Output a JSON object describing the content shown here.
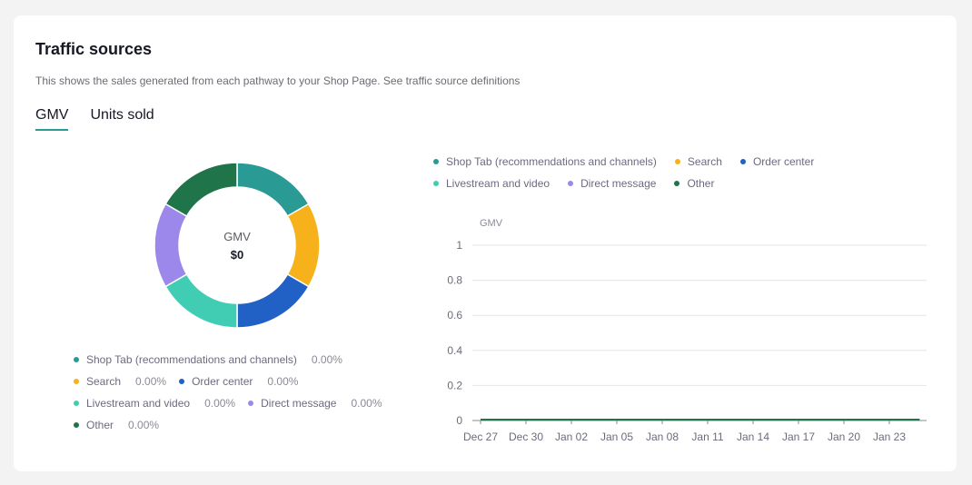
{
  "card": {
    "title": "Traffic sources",
    "description": "This shows the sales generated from each pathway to your Shop Page. See traffic source definitions",
    "tabs": [
      {
        "label": "GMV",
        "active": true
      },
      {
        "label": "Units sold",
        "active": false
      }
    ]
  },
  "donut": {
    "center_label": "GMV",
    "center_value": "$0"
  },
  "sources": [
    {
      "name": "Shop Tab (recommendations and channels)",
      "pct": "0.00%",
      "color": "#2a9a95"
    },
    {
      "name": "Search",
      "pct": "0.00%",
      "color": "#f7b21b"
    },
    {
      "name": "Order center",
      "pct": "0.00%",
      "color": "#2160c4"
    },
    {
      "name": "Livestream and video",
      "pct": "0.00%",
      "color": "#41cdb3"
    },
    {
      "name": "Direct message",
      "pct": "0.00%",
      "color": "#9c88ea"
    },
    {
      "name": "Other",
      "pct": "0.00%",
      "color": "#1f744a"
    }
  ],
  "chart_data": [
    {
      "type": "pie",
      "title": "GMV",
      "categories": [
        "Shop Tab (recommendations and channels)",
        "Search",
        "Order center",
        "Livestream and video",
        "Direct message",
        "Other"
      ],
      "values": [
        0,
        0,
        0,
        0,
        0,
        0
      ],
      "display_note": "all zero; rendered as equal placeholder segments",
      "center_text": "$0"
    },
    {
      "type": "line",
      "ylabel": "GMV",
      "ylim": [
        0,
        1
      ],
      "yticks": [
        "0",
        "0.2",
        "0.4",
        "0.6",
        "0.8",
        "1"
      ],
      "xticks": [
        "Dec 27",
        "Dec 30",
        "Jan 02",
        "Jan 05",
        "Jan 08",
        "Jan 11",
        "Jan 14",
        "Jan 17",
        "Jan 20",
        "Jan 23"
      ],
      "x_start": "Dec 27",
      "x_days": 30,
      "grid": true,
      "legend": "top",
      "series": [
        {
          "name": "Shop Tab (recommendations and channels)",
          "values": [
            0,
            0,
            0,
            0,
            0,
            0,
            0,
            0,
            0,
            0,
            0,
            0,
            0,
            0,
            0,
            0,
            0,
            0,
            0,
            0,
            0,
            0,
            0,
            0,
            0,
            0,
            0,
            0,
            0,
            0
          ]
        },
        {
          "name": "Search",
          "values": [
            0,
            0,
            0,
            0,
            0,
            0,
            0,
            0,
            0,
            0,
            0,
            0,
            0,
            0,
            0,
            0,
            0,
            0,
            0,
            0,
            0,
            0,
            0,
            0,
            0,
            0,
            0,
            0,
            0,
            0
          ]
        },
        {
          "name": "Order center",
          "values": [
            0,
            0,
            0,
            0,
            0,
            0,
            0,
            0,
            0,
            0,
            0,
            0,
            0,
            0,
            0,
            0,
            0,
            0,
            0,
            0,
            0,
            0,
            0,
            0,
            0,
            0,
            0,
            0,
            0,
            0
          ]
        },
        {
          "name": "Livestream and video",
          "values": [
            0,
            0,
            0,
            0,
            0,
            0,
            0,
            0,
            0,
            0,
            0,
            0,
            0,
            0,
            0,
            0,
            0,
            0,
            0,
            0,
            0,
            0,
            0,
            0,
            0,
            0,
            0,
            0,
            0,
            0
          ]
        },
        {
          "name": "Direct message",
          "values": [
            0,
            0,
            0,
            0,
            0,
            0,
            0,
            0,
            0,
            0,
            0,
            0,
            0,
            0,
            0,
            0,
            0,
            0,
            0,
            0,
            0,
            0,
            0,
            0,
            0,
            0,
            0,
            0,
            0,
            0
          ]
        },
        {
          "name": "Other",
          "values": [
            0,
            0,
            0,
            0,
            0,
            0,
            0,
            0,
            0,
            0,
            0,
            0,
            0,
            0,
            0,
            0,
            0,
            0,
            0,
            0,
            0,
            0,
            0,
            0,
            0,
            0,
            0,
            0,
            0,
            0
          ]
        }
      ]
    }
  ]
}
